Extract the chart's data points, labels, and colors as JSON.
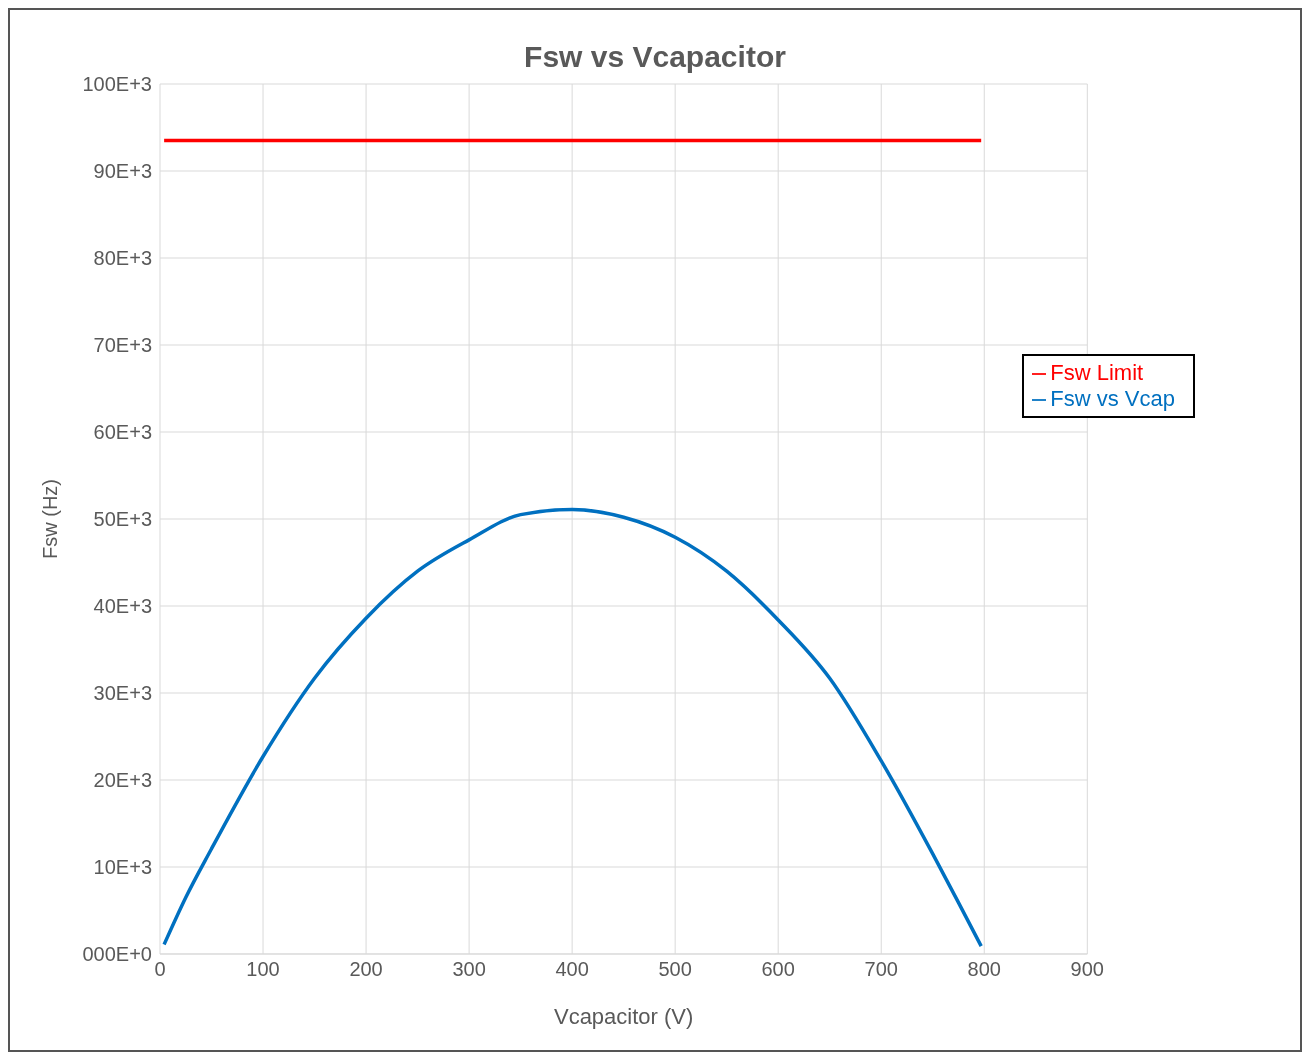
{
  "chart_data": {
    "type": "line",
    "title": "Fsw vs Vcapacitor",
    "xlabel": "Vcapacitor (V)",
    "ylabel": "Fsw (Hz)",
    "xlim": [
      0,
      900
    ],
    "xticks": [
      0,
      100,
      200,
      300,
      400,
      500,
      600,
      700,
      800,
      900
    ],
    "ylim": [
      0,
      100000
    ],
    "yticks": [
      {
        "value": 0,
        "label": "000E+0"
      },
      {
        "value": 10000,
        "label": "10E+3"
      },
      {
        "value": 20000,
        "label": "20E+3"
      },
      {
        "value": 30000,
        "label": "30E+3"
      },
      {
        "value": 40000,
        "label": "40E+3"
      },
      {
        "value": 50000,
        "label": "50E+3"
      },
      {
        "value": 60000,
        "label": "60E+3"
      },
      {
        "value": 70000,
        "label": "70E+3"
      },
      {
        "value": 80000,
        "label": "80E+3"
      },
      {
        "value": 90000,
        "label": "90E+3"
      },
      {
        "value": 100000,
        "label": "100E+3"
      }
    ],
    "grid": true,
    "legend": "right",
    "marker": "none",
    "line_style": "solid",
    "series": [
      {
        "name": "Fsw vs Vcap",
        "color": "#0070c0",
        "x": [
          4,
          25,
          50,
          100,
          150,
          200,
          250,
          300,
          350,
          400,
          450,
          500,
          550,
          600,
          650,
          700,
          750,
          775,
          797
        ],
        "values": [
          1100,
          6500,
          12100,
          22700,
          31700,
          38600,
          44000,
          47600,
          50500,
          51100,
          50200,
          47900,
          44000,
          38400,
          31700,
          22200,
          11500,
          5900,
          900
        ]
      },
      {
        "name": "Fsw Limit",
        "color": "#ff0000",
        "x": [
          4,
          797
        ],
        "values": [
          93500,
          93500
        ]
      }
    ]
  }
}
